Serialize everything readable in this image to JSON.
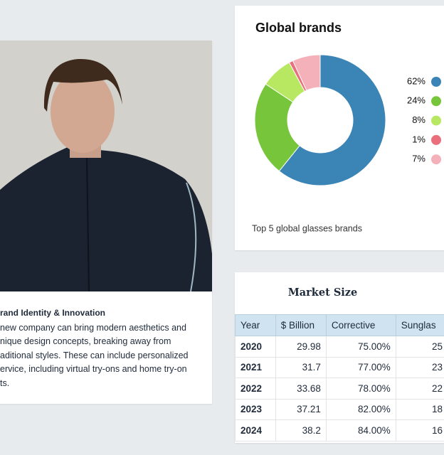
{
  "profile_card": {
    "heading": "rand Identity & Innovation",
    "lines": [
      "new company can bring modern aesthetics and",
      "nique design concepts, breaking away from",
      "aditional styles. These can include personalized",
      "ervice, including virtual try-ons and home try-on",
      "ts."
    ]
  },
  "chart_data": {
    "type": "pie",
    "donut": true,
    "title": "Global brands",
    "note": "Top 5 global glasses brands",
    "values": [
      62,
      24,
      8,
      1,
      7
    ],
    "value_labels": [
      "62%",
      "24%",
      "8%",
      "1%",
      "7%"
    ],
    "colors": [
      "#3a84b6",
      "#76c53b",
      "#b8e862",
      "#e96f7d",
      "#f5b1b9"
    ]
  },
  "table": {
    "title": "Market Size",
    "columns": [
      "Year",
      "$ Billion",
      "Corrective",
      "Sunglas"
    ],
    "rows": [
      [
        "2020",
        "29.98",
        "75.00%",
        "25"
      ],
      [
        "2021",
        "31.7",
        "77.00%",
        "23"
      ],
      [
        "2022",
        "33.68",
        "78.00%",
        "22"
      ],
      [
        "2023",
        "37.21",
        "82.00%",
        "18"
      ],
      [
        "2024",
        "38.2",
        "84.00%",
        "16"
      ]
    ]
  }
}
